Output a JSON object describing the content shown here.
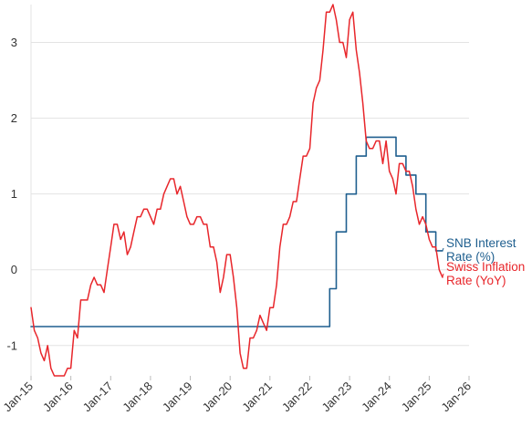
{
  "chart_data": {
    "type": "line",
    "title": "",
    "xlabel": "",
    "ylabel": "",
    "x_axis": {
      "min": "2015-01",
      "max": "2026-01",
      "ticks": [
        "2015-01",
        "2016-01",
        "2017-01",
        "2018-01",
        "2019-01",
        "2020-01",
        "2021-01",
        "2022-01",
        "2023-01",
        "2024-01",
        "2025-01",
        "2026-01"
      ],
      "tick_labels": [
        "Jan-15",
        "Jan-16",
        "Jan-17",
        "Jan-18",
        "Jan-19",
        "Jan-20",
        "Jan-21",
        "Jan-22",
        "Jan-23",
        "Jan-24",
        "Jan-25",
        "Jan-26"
      ],
      "label_rotation": "45 degrees"
    },
    "y_axis": {
      "min": -1.4,
      "max": 3.5,
      "ticks": [
        -1,
        0,
        1,
        2,
        3
      ],
      "tick_labels": [
        "-1",
        "0",
        "1",
        "2",
        "3"
      ]
    },
    "grid": "horizontal",
    "legend": "inline labels at right end of lines",
    "colors": {
      "snb": "#1f5f8f",
      "inflation": "#e8262b",
      "grid": "#e3e3e3",
      "text": "#333333"
    },
    "series": [
      {
        "name": "SNB Interest Rate (%)",
        "label_lines": [
          "SNB Interest",
          "Rate (%)"
        ],
        "color": "#1f5f8f",
        "step": true,
        "points": [
          [
            "2015-01",
            -0.75
          ],
          [
            "2022-06",
            -0.75
          ],
          [
            "2022-07",
            -0.25
          ],
          [
            "2022-09",
            0.5
          ],
          [
            "2022-12",
            1.0
          ],
          [
            "2023-03",
            1.5
          ],
          [
            "2023-06",
            1.75
          ],
          [
            "2024-03",
            1.5
          ],
          [
            "2024-06",
            1.25
          ],
          [
            "2024-09",
            1.0
          ],
          [
            "2024-12",
            0.5
          ],
          [
            "2025-03",
            0.25
          ],
          [
            "2025-05",
            0.25
          ]
        ]
      },
      {
        "name": "Swiss Inflation Rate (YoY)",
        "label_lines": [
          "Swiss Inflation",
          "Rate (YoY)"
        ],
        "color": "#e8262b",
        "step": false,
        "points": [
          [
            "2015-01",
            -0.5
          ],
          [
            "2015-02",
            -0.8
          ],
          [
            "2015-03",
            -0.9
          ],
          [
            "2015-04",
            -1.1
          ],
          [
            "2015-05",
            -1.2
          ],
          [
            "2015-06",
            -1.0
          ],
          [
            "2015-07",
            -1.3
          ],
          [
            "2015-08",
            -1.4
          ],
          [
            "2015-09",
            -1.4
          ],
          [
            "2015-10",
            -1.4
          ],
          [
            "2015-11",
            -1.4
          ],
          [
            "2015-12",
            -1.3
          ],
          [
            "2016-01",
            -1.3
          ],
          [
            "2016-02",
            -0.8
          ],
          [
            "2016-03",
            -0.9
          ],
          [
            "2016-04",
            -0.4
          ],
          [
            "2016-05",
            -0.4
          ],
          [
            "2016-06",
            -0.4
          ],
          [
            "2016-07",
            -0.2
          ],
          [
            "2016-08",
            -0.1
          ],
          [
            "2016-09",
            -0.2
          ],
          [
            "2016-10",
            -0.2
          ],
          [
            "2016-11",
            -0.3
          ],
          [
            "2016-12",
            0.0
          ],
          [
            "2017-01",
            0.3
          ],
          [
            "2017-02",
            0.6
          ],
          [
            "2017-03",
            0.6
          ],
          [
            "2017-04",
            0.4
          ],
          [
            "2017-05",
            0.5
          ],
          [
            "2017-06",
            0.2
          ],
          [
            "2017-07",
            0.3
          ],
          [
            "2017-08",
            0.5
          ],
          [
            "2017-09",
            0.7
          ],
          [
            "2017-10",
            0.7
          ],
          [
            "2017-11",
            0.8
          ],
          [
            "2017-12",
            0.8
          ],
          [
            "2018-01",
            0.7
          ],
          [
            "2018-02",
            0.6
          ],
          [
            "2018-03",
            0.8
          ],
          [
            "2018-04",
            0.8
          ],
          [
            "2018-05",
            1.0
          ],
          [
            "2018-06",
            1.1
          ],
          [
            "2018-07",
            1.2
          ],
          [
            "2018-08",
            1.2
          ],
          [
            "2018-09",
            1.0
          ],
          [
            "2018-10",
            1.1
          ],
          [
            "2018-11",
            0.9
          ],
          [
            "2018-12",
            0.7
          ],
          [
            "2019-01",
            0.6
          ],
          [
            "2019-02",
            0.6
          ],
          [
            "2019-03",
            0.7
          ],
          [
            "2019-04",
            0.7
          ],
          [
            "2019-05",
            0.6
          ],
          [
            "2019-06",
            0.6
          ],
          [
            "2019-07",
            0.3
          ],
          [
            "2019-08",
            0.3
          ],
          [
            "2019-09",
            0.1
          ],
          [
            "2019-10",
            -0.3
          ],
          [
            "2019-11",
            -0.1
          ],
          [
            "2019-12",
            0.2
          ],
          [
            "2020-01",
            0.2
          ],
          [
            "2020-02",
            -0.1
          ],
          [
            "2020-03",
            -0.5
          ],
          [
            "2020-04",
            -1.1
          ],
          [
            "2020-05",
            -1.3
          ],
          [
            "2020-06",
            -1.3
          ],
          [
            "2020-07",
            -0.9
          ],
          [
            "2020-08",
            -0.9
          ],
          [
            "2020-09",
            -0.8
          ],
          [
            "2020-10",
            -0.6
          ],
          [
            "2020-11",
            -0.7
          ],
          [
            "2020-12",
            -0.8
          ],
          [
            "2021-01",
            -0.5
          ],
          [
            "2021-02",
            -0.5
          ],
          [
            "2021-03",
            -0.2
          ],
          [
            "2021-04",
            0.3
          ],
          [
            "2021-05",
            0.6
          ],
          [
            "2021-06",
            0.6
          ],
          [
            "2021-07",
            0.7
          ],
          [
            "2021-08",
            0.9
          ],
          [
            "2021-09",
            0.9
          ],
          [
            "2021-10",
            1.2
          ],
          [
            "2021-11",
            1.5
          ],
          [
            "2021-12",
            1.5
          ],
          [
            "2022-01",
            1.6
          ],
          [
            "2022-02",
            2.2
          ],
          [
            "2022-03",
            2.4
          ],
          [
            "2022-04",
            2.5
          ],
          [
            "2022-05",
            2.9
          ],
          [
            "2022-06",
            3.4
          ],
          [
            "2022-07",
            3.4
          ],
          [
            "2022-08",
            3.5
          ],
          [
            "2022-09",
            3.3
          ],
          [
            "2022-10",
            3.0
          ],
          [
            "2022-11",
            3.0
          ],
          [
            "2022-12",
            2.8
          ],
          [
            "2023-01",
            3.3
          ],
          [
            "2023-02",
            3.4
          ],
          [
            "2023-03",
            2.9
          ],
          [
            "2023-04",
            2.6
          ],
          [
            "2023-05",
            2.2
          ],
          [
            "2023-06",
            1.7
          ],
          [
            "2023-07",
            1.6
          ],
          [
            "2023-08",
            1.6
          ],
          [
            "2023-09",
            1.7
          ],
          [
            "2023-10",
            1.7
          ],
          [
            "2023-11",
            1.4
          ],
          [
            "2023-12",
            1.7
          ],
          [
            "2024-01",
            1.3
          ],
          [
            "2024-02",
            1.2
          ],
          [
            "2024-03",
            1.0
          ],
          [
            "2024-04",
            1.4
          ],
          [
            "2024-05",
            1.4
          ],
          [
            "2024-06",
            1.3
          ],
          [
            "2024-07",
            1.3
          ],
          [
            "2024-08",
            1.1
          ],
          [
            "2024-09",
            0.8
          ],
          [
            "2024-10",
            0.6
          ],
          [
            "2024-11",
            0.7
          ],
          [
            "2024-12",
            0.6
          ],
          [
            "2025-01",
            0.4
          ],
          [
            "2025-02",
            0.3
          ],
          [
            "2025-03",
            0.3
          ],
          [
            "2025-04",
            0.0
          ],
          [
            "2025-05",
            -0.1
          ]
        ]
      }
    ]
  }
}
